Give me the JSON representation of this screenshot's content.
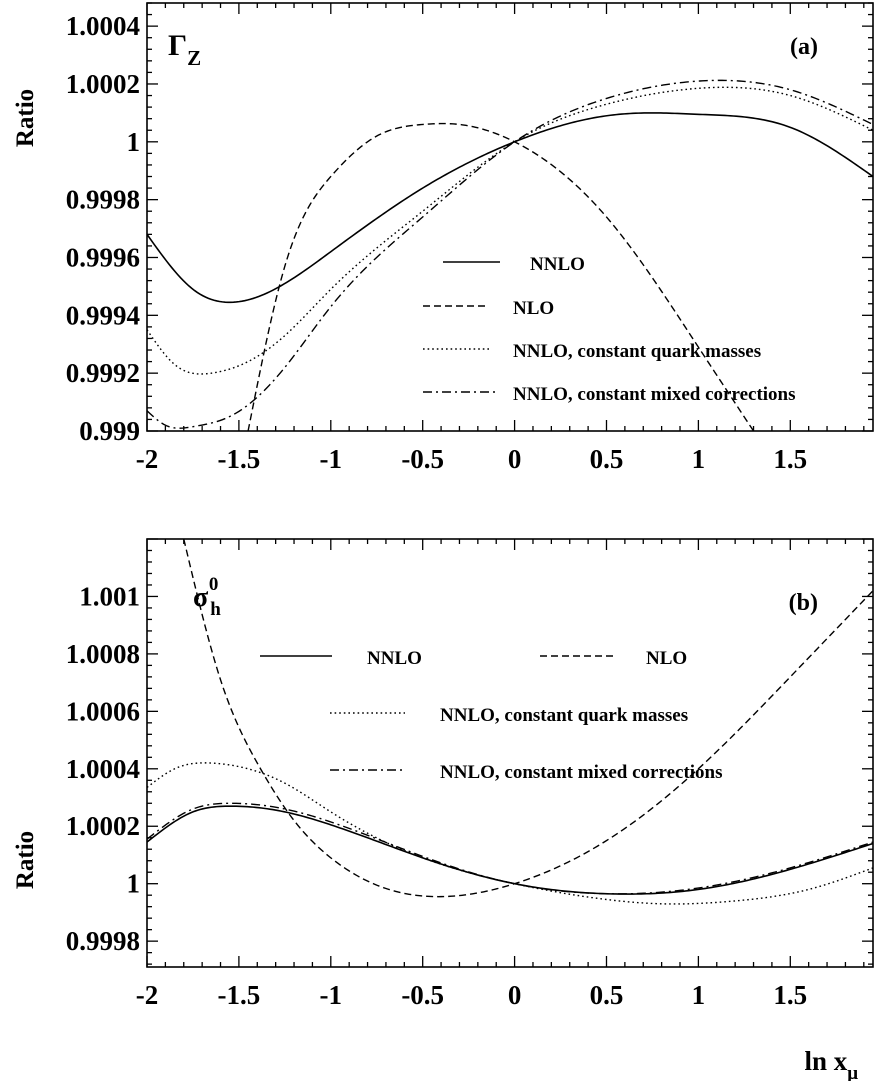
{
  "chart_data": [
    {
      "type": "line",
      "panel_label": "(a)",
      "quantity_symbol": "Γ",
      "quantity_sub": "Z",
      "ylabel": "Ratio",
      "xlim": [
        -2,
        1.95
      ],
      "ylim": [
        0.999,
        1.00048
      ],
      "x_ticks": [
        -2,
        -1.5,
        -1,
        -0.5,
        0,
        0.5,
        1,
        1.5
      ],
      "x_tick_labels": [
        "-2",
        "-1.5",
        "-1",
        "-0.5",
        "0",
        "0.5",
        "1",
        "1.5"
      ],
      "y_ticks": [
        0.999,
        0.9992,
        0.9994,
        0.9996,
        0.9998,
        1,
        1.0002,
        1.0004
      ],
      "y_tick_labels": [
        "0.999",
        "0.9992",
        "0.9994",
        "0.9996",
        "0.9998",
        "1",
        "1.0002",
        "1.0004"
      ],
      "grid": false,
      "series": [
        {
          "name": "NNLO",
          "style": "solid",
          "x": [
            -2,
            -1.75,
            -1.55,
            -1.25,
            -1,
            -0.5,
            0,
            0.5,
            0.75,
            1,
            1.5,
            1.95
          ],
          "y": [
            0.99968,
            0.99949,
            0.999445,
            0.99951,
            0.99962,
            0.99984,
            1.0,
            1.00009,
            1.0001,
            1.000095,
            1.00005,
            0.99988
          ]
        },
        {
          "name": "NLO",
          "style": "dashed",
          "x": [
            -1.45,
            -1.25,
            -1,
            -0.75,
            -0.5,
            -0.3,
            0,
            0.5,
            1,
            1.3
          ],
          "y": [
            0.999,
            0.99957,
            0.99988,
            1.00002,
            1.00006,
            1.00006,
            1.0,
            0.99974,
            0.99929,
            0.999
          ]
        },
        {
          "name": "NNLO, constant quark masses",
          "style": "dotted",
          "x": [
            -2,
            -1.85,
            -1.65,
            -1.45,
            -1.25,
            -1,
            -0.5,
            0,
            0.5,
            1,
            1.5,
            1.95
          ],
          "y": [
            0.99935,
            0.99923,
            0.9992,
            0.99924,
            0.99933,
            0.99949,
            0.99976,
            1.0,
            1.00013,
            1.000185,
            1.00016,
            1.00004
          ]
        },
        {
          "name": "NNLO, constant mixed corrections",
          "style": "dashdot",
          "x": [
            -2,
            -1.9,
            -1.75,
            -1.55,
            -1.25,
            -1,
            -0.5,
            0,
            0.5,
            1,
            1.5,
            1.95
          ],
          "y": [
            0.99907,
            0.99902,
            0.999015,
            0.99905,
            0.99922,
            0.99943,
            0.99974,
            1.0,
            1.00015,
            1.00021,
            1.00018,
            1.00006
          ]
        }
      ]
    },
    {
      "type": "line",
      "panel_label": "(b)",
      "quantity_symbol": "σ",
      "quantity_sub": "h",
      "quantity_sup": "0",
      "ylabel": "Ratio",
      "xlabel_main": "ln x",
      "xlabel_sub": "μ",
      "xlim": [
        -2,
        1.95
      ],
      "ylim": [
        0.99971,
        1.0012
      ],
      "x_ticks": [
        -2,
        -1.5,
        -1,
        -0.5,
        0,
        0.5,
        1,
        1.5
      ],
      "x_tick_labels": [
        "-2",
        "-1.5",
        "-1",
        "-0.5",
        "0",
        "0.5",
        "1",
        "1.5"
      ],
      "y_ticks": [
        0.9998,
        1,
        1.0002,
        1.0004,
        1.0006,
        1.0008,
        1.001
      ],
      "y_tick_labels": [
        "0.9998",
        "1",
        "1.0002",
        "1.0004",
        "1.0006",
        "1.0008",
        "1.001"
      ],
      "grid": false,
      "series": [
        {
          "name": "NNLO",
          "style": "solid",
          "x": [
            -2,
            -1.75,
            -1.55,
            -1.25,
            -1,
            -0.5,
            0,
            0.5,
            1,
            1.5,
            1.95
          ],
          "y": [
            1.000145,
            1.00025,
            1.00027,
            1.00025,
            1.000205,
            1.00009,
            1.0,
            0.999965,
            0.99998,
            1.00005,
            1.00014
          ]
        },
        {
          "name": "NLO",
          "style": "dashed",
          "x": [
            -1.8,
            -1.6,
            -1.4,
            -1.2,
            -1,
            -0.75,
            -0.4,
            0,
            0.5,
            1,
            1.5,
            1.95
          ],
          "y": [
            1.0012,
            1.00071,
            1.00042,
            1.00022,
            1.00009,
            0.999995,
            0.999955,
            1.0,
            1.00015,
            1.0004,
            1.00072,
            1.00102
          ]
        },
        {
          "name": "NNLO, constant quark masses",
          "style": "dotted",
          "x": [
            -2,
            -1.85,
            -1.65,
            -1.45,
            -1.25,
            -1,
            -0.5,
            0,
            0.5,
            0.8,
            1.2,
            1.6,
            1.95
          ],
          "y": [
            1.000335,
            1.0004,
            1.00042,
            1.0004,
            1.00035,
            1.00025,
            1.00009,
            1.0,
            0.999945,
            0.99993,
            0.99994,
            0.99998,
            1.000055
          ]
        },
        {
          "name": "NNLO, constant mixed corrections",
          "style": "dashdot",
          "x": [
            -2,
            -1.75,
            -1.55,
            -1.25,
            -1,
            -0.5,
            0,
            0.5,
            1,
            1.5,
            1.95
          ],
          "y": [
            1.000155,
            1.00026,
            1.00028,
            1.00026,
            1.000215,
            1.000095,
            1.0,
            0.999965,
            0.999985,
            1.000055,
            1.000145
          ]
        }
      ]
    }
  ]
}
